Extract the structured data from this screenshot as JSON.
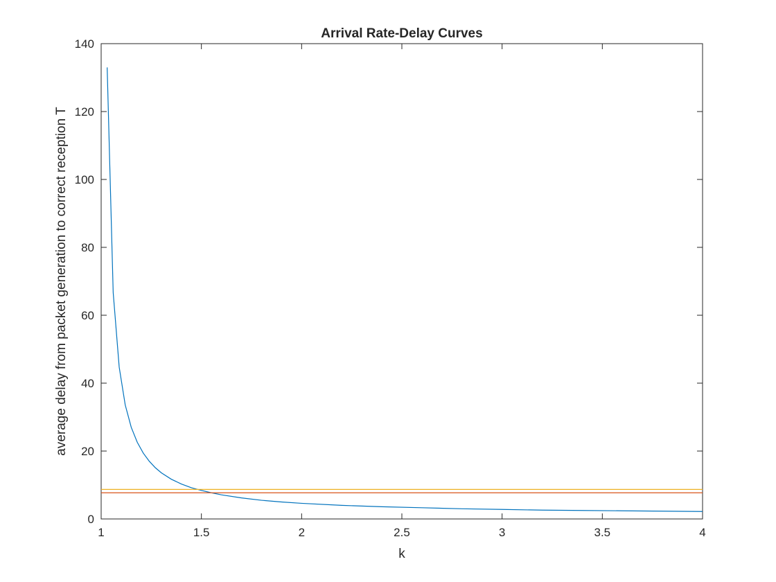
{
  "chart_data": {
    "type": "line",
    "title": "Arrival Rate-Delay Curves",
    "xlabel": "k",
    "ylabel": "average delay from packet generation to correct reception T",
    "xlim": [
      1,
      4
    ],
    "ylim": [
      0,
      140
    ],
    "xticks": [
      1,
      1.5,
      2,
      2.5,
      3,
      3.5,
      4
    ],
    "xtick_labels": [
      "1",
      "1.5",
      "2",
      "2.5",
      "3",
      "3.5",
      "4"
    ],
    "yticks": [
      0,
      20,
      40,
      60,
      80,
      100,
      120,
      140
    ],
    "ytick_labels": [
      "0",
      "20",
      "40",
      "60",
      "80",
      "100",
      "120",
      "140"
    ],
    "grid": false,
    "legend": "none",
    "series": [
      {
        "color": "#0072BD",
        "x": [
          1.03,
          1.06,
          1.09,
          1.12,
          1.15,
          1.18,
          1.21,
          1.24,
          1.27,
          1.3,
          1.35,
          1.4,
          1.45,
          1.5,
          1.55,
          1.6,
          1.7,
          1.8,
          1.9,
          2.0,
          2.2,
          2.4,
          2.6,
          2.8,
          3.0,
          3.2,
          3.4,
          3.6,
          3.8,
          4.0
        ],
        "y": [
          133.0,
          66.7,
          44.7,
          33.6,
          27.0,
          22.6,
          19.4,
          17.0,
          15.1,
          13.6,
          11.7,
          10.3,
          9.2,
          8.4,
          7.7,
          7.1,
          6.2,
          5.5,
          5.0,
          4.6,
          4.0,
          3.6,
          3.3,
          3.0,
          2.8,
          2.6,
          2.5,
          2.4,
          2.3,
          2.2
        ]
      },
      {
        "color": "#EDB120",
        "x": [
          1,
          4
        ],
        "y": [
          8.7,
          8.7
        ]
      },
      {
        "color": "#D95319",
        "x": [
          1,
          4
        ],
        "y": [
          7.7,
          7.7
        ]
      }
    ]
  }
}
